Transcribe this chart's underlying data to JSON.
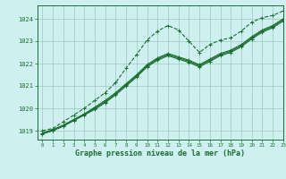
{
  "title": "Graphe pression niveau de la mer (hPa)",
  "background_color": "#cff0f0",
  "grid_color": "#99ccbb",
  "line_color": "#1a6e2e",
  "xlim": [
    -0.5,
    23
  ],
  "ylim": [
    1018.6,
    1024.6
  ],
  "yticks": [
    1019,
    1020,
    1021,
    1022,
    1023,
    1024
  ],
  "xticks": [
    0,
    1,
    2,
    3,
    4,
    5,
    6,
    7,
    8,
    9,
    10,
    11,
    12,
    13,
    14,
    15,
    16,
    17,
    18,
    19,
    20,
    21,
    22,
    23
  ],
  "series": [
    {
      "linestyle": "--",
      "x": [
        0,
        1,
        2,
        3,
        4,
        5,
        6,
        7,
        8,
        9,
        10,
        11,
        12,
        13,
        14,
        15,
        16,
        17,
        18,
        19,
        20,
        21,
        22,
        23
      ],
      "y": [
        1019.0,
        1019.1,
        1019.4,
        1019.7,
        1020.0,
        1020.35,
        1020.7,
        1021.15,
        1021.8,
        1022.4,
        1023.05,
        1023.45,
        1023.7,
        1023.5,
        1023.0,
        1022.5,
        1022.85,
        1023.05,
        1023.15,
        1023.45,
        1023.85,
        1024.05,
        1024.15,
        1024.35
      ]
    },
    {
      "linestyle": "-",
      "x": [
        0,
        1,
        2,
        3,
        4,
        5,
        6,
        7,
        8,
        9,
        10,
        11,
        12,
        13,
        14,
        15,
        16,
        17,
        18,
        19,
        20,
        21,
        22,
        23
      ],
      "y": [
        1018.85,
        1019.0,
        1019.2,
        1019.45,
        1019.7,
        1019.95,
        1020.25,
        1020.6,
        1021.0,
        1021.4,
        1021.85,
        1022.15,
        1022.35,
        1022.2,
        1022.05,
        1021.85,
        1022.1,
        1022.35,
        1022.5,
        1022.75,
        1023.1,
        1023.4,
        1023.6,
        1023.9
      ]
    },
    {
      "linestyle": "-",
      "x": [
        0,
        1,
        2,
        3,
        4,
        5,
        6,
        7,
        8,
        9,
        10,
        11,
        12,
        13,
        14,
        15,
        16,
        17,
        18,
        19,
        20,
        21,
        22,
        23
      ],
      "y": [
        1018.9,
        1019.05,
        1019.25,
        1019.5,
        1019.75,
        1020.05,
        1020.35,
        1020.7,
        1021.1,
        1021.5,
        1021.95,
        1022.25,
        1022.45,
        1022.3,
        1022.15,
        1021.95,
        1022.2,
        1022.45,
        1022.6,
        1022.85,
        1023.2,
        1023.5,
        1023.7,
        1024.0
      ]
    },
    {
      "linestyle": "-",
      "x": [
        0,
        1,
        2,
        3,
        4,
        5,
        6,
        7,
        8,
        9,
        10,
        11,
        12,
        13,
        14,
        15,
        16,
        17,
        18,
        19,
        20,
        21,
        22,
        23
      ],
      "y": [
        1018.88,
        1019.02,
        1019.22,
        1019.47,
        1019.72,
        1020.0,
        1020.3,
        1020.65,
        1021.05,
        1021.45,
        1021.9,
        1022.2,
        1022.4,
        1022.25,
        1022.1,
        1021.9,
        1022.15,
        1022.4,
        1022.55,
        1022.8,
        1023.15,
        1023.45,
        1023.65,
        1023.95
      ]
    }
  ],
  "marker": "+",
  "markersize": 3.5,
  "linewidth": 0.8
}
